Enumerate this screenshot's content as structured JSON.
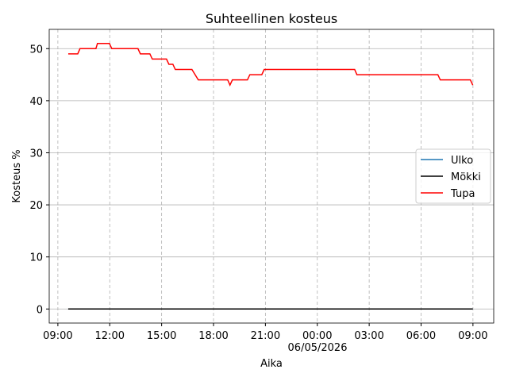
{
  "chart_data": {
    "type": "line",
    "title": "Suhteellinen kosteus",
    "x_label": "Aika",
    "y_label": "Kosteus %",
    "date_label": "06/05/2026",
    "xlim": [
      -15.5,
      10.2
    ],
    "ylim": [
      -2.7,
      53.7
    ],
    "xticks": [
      {
        "value": -15,
        "label": "09:00"
      },
      {
        "value": -12,
        "label": "12:00"
      },
      {
        "value": -9,
        "label": "15:00"
      },
      {
        "value": -6,
        "label": "18:00"
      },
      {
        "value": -3,
        "label": "21:00"
      },
      {
        "value": 0,
        "label": "00:00"
      },
      {
        "value": 3,
        "label": "03:00"
      },
      {
        "value": 6,
        "label": "06:00"
      },
      {
        "value": 9,
        "label": "09:00"
      }
    ],
    "yticks": [
      0,
      10,
      20,
      30,
      40,
      50
    ],
    "grid": true,
    "legend": "center right",
    "series": [
      {
        "name": "Ulko",
        "color": "#1f77b4",
        "x": [
          -14.4,
          8.99
        ],
        "values": [
          0,
          0
        ]
      },
      {
        "name": "Mökki",
        "color": "#000000",
        "x": [
          -14.4,
          8.99
        ],
        "values": [
          0,
          0
        ]
      },
      {
        "name": "Tupa",
        "color": "#ff0000",
        "x": [
          -14.4,
          -13.85,
          -13.72,
          -12.8,
          -12.71,
          -12.02,
          -11.88,
          -10.37,
          -10.23,
          -9.68,
          -9.54,
          -8.72,
          -8.58,
          -8.35,
          -8.21,
          -7.25,
          -6.88,
          -5.18,
          -5.05,
          -4.91,
          -4.04,
          -3.9,
          -3.21,
          -3.07,
          2.16,
          2.29,
          6.97,
          7.11,
          8.85,
          8.99
        ],
        "values": [
          49,
          49,
          50,
          50,
          51,
          51,
          50,
          50,
          49,
          49,
          48,
          48,
          47,
          47,
          46,
          46,
          44,
          44,
          43,
          44,
          44,
          45,
          45,
          46,
          46,
          45,
          45,
          44,
          44,
          43
        ]
      }
    ]
  }
}
